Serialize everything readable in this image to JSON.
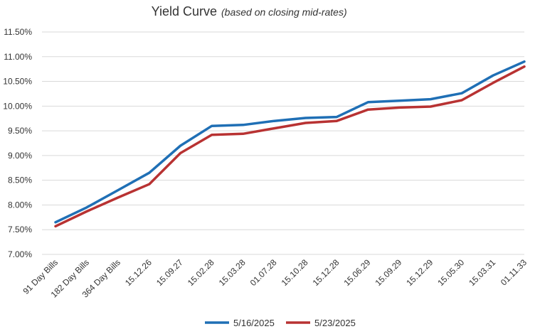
{
  "chart_data": {
    "type": "line",
    "title": "Yield Curve",
    "subtitle": "(based on closing mid-rates)",
    "categories": [
      "91 Day Bills",
      "182 Day Bills",
      "364 Day Bills",
      "15.12.26",
      "15.09.27",
      "15.02.28",
      "15.03.28",
      "01.07.28",
      "15.10.28",
      "15.12.28",
      "15.06.29",
      "15.09.29",
      "15.12.29",
      "15.05.30",
      "15.03.31",
      "01.11.33"
    ],
    "y_ticks": [
      "7.00%",
      "7.50%",
      "8.00%",
      "8.50%",
      "9.00%",
      "9.50%",
      "10.00%",
      "10.50%",
      "11.00%",
      "11.50%"
    ],
    "ylim": [
      7.0,
      11.5
    ],
    "grid": true,
    "legend_position": "bottom",
    "series": [
      {
        "name": "5/16/2025",
        "color": "#1f6fb5",
        "values": [
          7.65,
          7.95,
          8.3,
          8.65,
          9.2,
          9.6,
          9.62,
          9.7,
          9.76,
          9.78,
          10.08,
          10.11,
          10.14,
          10.26,
          10.62,
          10.9
        ]
      },
      {
        "name": "5/23/2025",
        "color": "#b83232",
        "values": [
          7.57,
          7.87,
          8.15,
          8.42,
          9.05,
          9.42,
          9.44,
          9.55,
          9.66,
          9.7,
          9.93,
          9.97,
          9.99,
          10.12,
          10.47,
          10.8
        ]
      }
    ]
  }
}
